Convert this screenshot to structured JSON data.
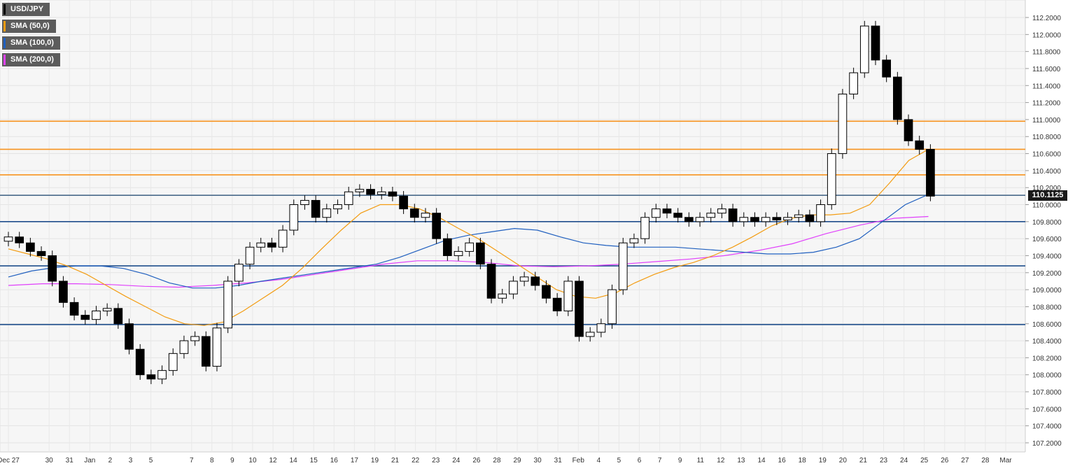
{
  "legend": [
    {
      "label": "USD/JPY",
      "color": "#000000"
    },
    {
      "label": "SMA (50,0)",
      "color": "#f39c12"
    },
    {
      "label": "SMA (100,0)",
      "color": "#1f5fbf"
    },
    {
      "label": "SMA (200,0)",
      "color": "#e040fb"
    }
  ],
  "last_price_label": "110.1125",
  "chart_data": {
    "type": "candlestick",
    "symbol": "USD/JPY",
    "ylim": [
      107.1,
      112.3
    ],
    "y_ticks": [
      "112.2000",
      "112.0000",
      "111.8000",
      "111.6000",
      "111.4000",
      "111.2000",
      "111.0000",
      "110.8000",
      "110.6000",
      "110.4000",
      "110.2000",
      "110.0000",
      "109.8000",
      "109.6000",
      "109.4000",
      "109.2000",
      "109.0000",
      "108.8000",
      "108.6000",
      "108.4000",
      "108.2000",
      "108.0000",
      "107.8000",
      "107.6000",
      "107.4000",
      "107.2000"
    ],
    "x_ticks": [
      "Dec 27",
      "30",
      "31",
      "Jan",
      "2",
      "3",
      "5",
      "7",
      "8",
      "9",
      "10",
      "12",
      "14",
      "15",
      "16",
      "17",
      "19",
      "21",
      "22",
      "23",
      "24",
      "26",
      "28",
      "29",
      "30",
      "31",
      "Feb",
      "4",
      "5",
      "6",
      "7",
      "9",
      "11",
      "12",
      "13",
      "14",
      "16",
      "18",
      "19",
      "20",
      "21",
      "23",
      "24",
      "25",
      "26",
      "27",
      "28",
      "Mar"
    ],
    "x_tick_values": [
      0,
      2,
      3,
      4,
      5,
      6,
      7,
      9,
      10,
      11,
      12,
      13,
      14,
      15,
      16,
      17,
      18,
      19,
      20,
      21,
      22,
      23,
      24,
      25,
      26,
      27,
      28,
      29,
      30,
      31,
      32,
      33,
      34,
      35,
      36,
      37,
      38,
      39,
      40,
      41,
      42,
      43,
      44,
      45,
      46,
      47,
      48,
      49
    ],
    "horizontal_levels": [
      {
        "value": 110.98,
        "color": "#f7931e"
      },
      {
        "value": 110.65,
        "color": "#f7931e"
      },
      {
        "value": 110.35,
        "color": "#f7931e"
      },
      {
        "value": 110.11,
        "color": "#4a6a8a"
      },
      {
        "value": 109.8,
        "color": "#1f4e8c"
      },
      {
        "value": 109.28,
        "color": "#1f4e8c"
      },
      {
        "value": 108.59,
        "color": "#1f4e8c"
      }
    ],
    "close": [
      109.62,
      109.55,
      109.45,
      109.4,
      109.1,
      108.85,
      108.7,
      108.65,
      108.75,
      108.78,
      108.6,
      108.3,
      108.0,
      107.95,
      108.05,
      108.25,
      108.4,
      108.45,
      108.1,
      108.55,
      109.1,
      109.3,
      109.5,
      109.55,
      109.5,
      109.7,
      110.0,
      110.05,
      109.85,
      109.95,
      110.0,
      110.15,
      110.18,
      110.12,
      110.15,
      110.1,
      109.95,
      109.85,
      109.9,
      109.6,
      109.4,
      109.45,
      109.55,
      109.3,
      108.9,
      108.95,
      109.1,
      109.15,
      109.05,
      108.9,
      108.75,
      109.1,
      108.45,
      108.5,
      108.6,
      109.0,
      109.55,
      109.6,
      109.85,
      109.95,
      109.9,
      109.85,
      109.8,
      109.85,
      109.9,
      109.95,
      109.8,
      109.85,
      109.8,
      109.85,
      109.82,
      109.85,
      109.88,
      109.8,
      110.0,
      110.6,
      111.3,
      111.55,
      112.1,
      111.7,
      111.5,
      111.0,
      110.75,
      110.65,
      110.1
    ],
    "sma_50": [
      109.48,
      109.42,
      109.36,
      109.28,
      109.18,
      109.05,
      108.92,
      108.8,
      108.68,
      108.6,
      108.58,
      108.62,
      108.75,
      108.9,
      109.05,
      109.25,
      109.48,
      109.7,
      109.9,
      110.0,
      110.0,
      109.95,
      109.85,
      109.72,
      109.6,
      109.45,
      109.3,
      109.15,
      109.0,
      108.92,
      108.9,
      108.96,
      109.08,
      109.18,
      109.26,
      109.32,
      109.4,
      109.5,
      109.62,
      109.75,
      109.84,
      109.88,
      109.88,
      109.9,
      110.0,
      110.25,
      110.52,
      110.65
    ],
    "sma_100": [
      109.15,
      109.22,
      109.26,
      109.28,
      109.28,
      109.25,
      109.18,
      109.08,
      109.02,
      109.02,
      109.05,
      109.1,
      109.14,
      109.18,
      109.22,
      109.26,
      109.3,
      109.38,
      109.48,
      109.58,
      109.64,
      109.68,
      109.72,
      109.7,
      109.62,
      109.55,
      109.52,
      109.5,
      109.5,
      109.5,
      109.48,
      109.46,
      109.44,
      109.42,
      109.42,
      109.44,
      109.5,
      109.6,
      109.8,
      110.0,
      110.12
    ],
    "sma_200": [
      109.05,
      109.07,
      109.07,
      109.06,
      109.04,
      109.03,
      109.05,
      109.08,
      109.12,
      109.18,
      109.24,
      109.3,
      109.34,
      109.34,
      109.32,
      109.28,
      109.27,
      109.28,
      109.3,
      109.33,
      109.36,
      109.4,
      109.46,
      109.54,
      109.66,
      109.76,
      109.84,
      109.86
    ]
  }
}
